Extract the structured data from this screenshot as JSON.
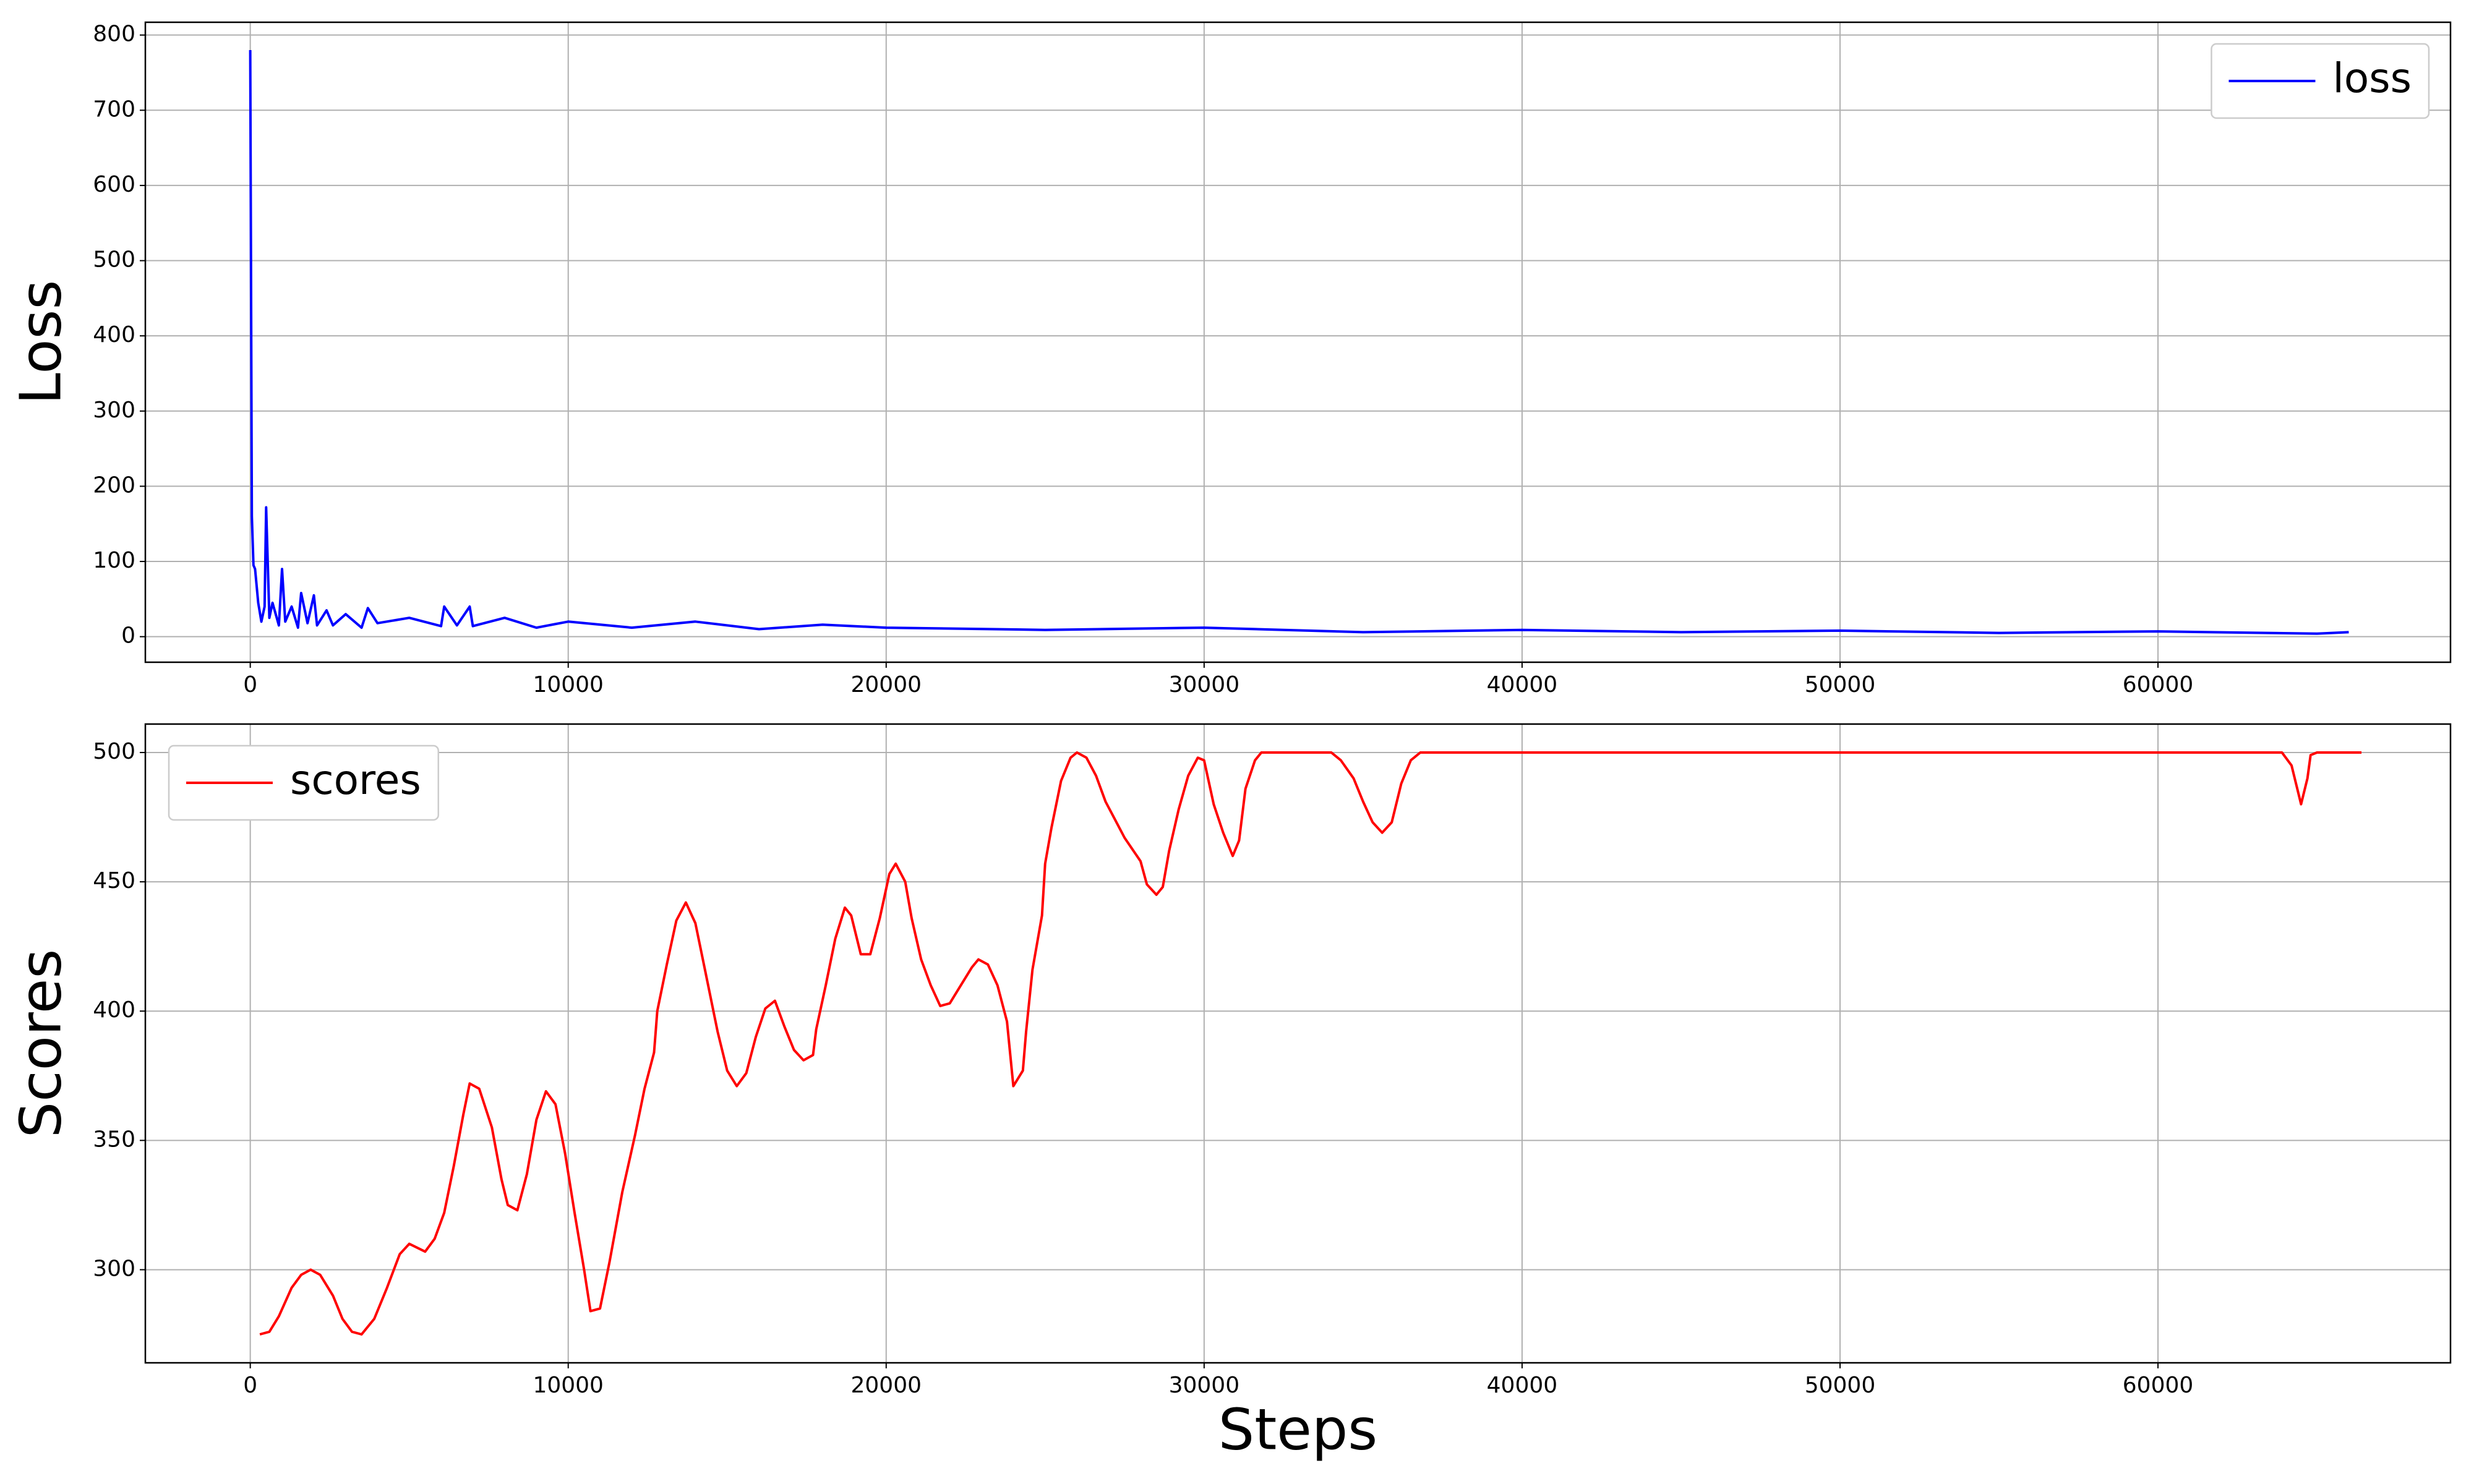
{
  "chart_data": [
    {
      "type": "line",
      "ylabel": "Loss",
      "x": [
        0,
        50,
        100,
        150,
        250,
        350,
        450,
        500,
        600,
        700,
        900,
        1000,
        1100,
        1300,
        1500,
        1600,
        1800,
        2000,
        2100,
        2400,
        2600,
        3000,
        3500,
        3700,
        4000,
        5000,
        6000,
        6100,
        6500,
        6900,
        7000,
        8000,
        9000,
        10000,
        12000,
        14000,
        16000,
        18000,
        20000,
        25000,
        30000,
        35000,
        40000,
        45000,
        50000,
        55000,
        60000,
        65000,
        66000
      ],
      "series": [
        {
          "name": "loss",
          "color": "#0000ff",
          "values": [
            780,
            160,
            95,
            90,
            45,
            20,
            40,
            172,
            25,
            45,
            15,
            90,
            20,
            40,
            12,
            58,
            18,
            55,
            15,
            35,
            15,
            30,
            12,
            38,
            18,
            25,
            14,
            40,
            15,
            40,
            14,
            25,
            12,
            20,
            12,
            20,
            10,
            16,
            12,
            9,
            12,
            6,
            9,
            6,
            8,
            5,
            7,
            4,
            6
          ]
        }
      ],
      "xlim": [
        -3300,
        69200
      ],
      "ylim": [
        -34,
        817
      ],
      "xticks": [
        0,
        10000,
        20000,
        30000,
        40000,
        50000,
        60000
      ],
      "yticks": [
        0,
        100,
        200,
        300,
        400,
        500,
        600,
        700,
        800
      ],
      "grid": true,
      "legend": "upper right"
    },
    {
      "type": "line",
      "ylabel": "Scores",
      "xlabel": "Steps",
      "x": [
        300,
        600,
        900,
        1300,
        1600,
        1900,
        2200,
        2600,
        2900,
        3200,
        3500,
        3900,
        4300,
        4700,
        5000,
        5500,
        5800,
        6100,
        6400,
        6700,
        6900,
        7200,
        7600,
        7900,
        8100,
        8400,
        8700,
        9000,
        9300,
        9600,
        9900,
        10200,
        10500,
        10700,
        11000,
        11300,
        11700,
        12100,
        12400,
        12700,
        12800,
        13100,
        13400,
        13700,
        14000,
        14300,
        14700,
        15000,
        15300,
        15600,
        15900,
        16200,
        16500,
        16800,
        17100,
        17400,
        17700,
        17800,
        18100,
        18400,
        18700,
        18900,
        19200,
        19500,
        19800,
        20100,
        20300,
        20600,
        20800,
        21100,
        21400,
        21700,
        22000,
        22300,
        22700,
        22900,
        23200,
        23500,
        23800,
        24000,
        24300,
        24400,
        24600,
        24900,
        25000,
        25200,
        25500,
        25800,
        26000,
        26300,
        26600,
        26900,
        27200,
        27500,
        28000,
        28200,
        28500,
        28700,
        28900,
        29200,
        29500,
        29800,
        30000,
        30300,
        30600,
        30900,
        31100,
        31300,
        31600,
        31800,
        34000,
        34300,
        34700,
        35000,
        35300,
        35600,
        35900,
        36200,
        36500,
        36800,
        63900,
        64200,
        64500,
        64700,
        64800,
        65000,
        66400
      ],
      "series": [
        {
          "name": "scores",
          "color": "#ff0000",
          "values": [
            275,
            276,
            282,
            293,
            298,
            300,
            298,
            290,
            281,
            276,
            275,
            281,
            293,
            306,
            310,
            307,
            312,
            322,
            340,
            360,
            372,
            370,
            355,
            335,
            325,
            323,
            337,
            358,
            369,
            364,
            345,
            322,
            300,
            284,
            285,
            303,
            330,
            352,
            370,
            384,
            400,
            418,
            435,
            442,
            434,
            416,
            392,
            377,
            371,
            376,
            390,
            401,
            404,
            394,
            385,
            381,
            383,
            393,
            410,
            428,
            440,
            437,
            422,
            422,
            436,
            453,
            457,
            450,
            436,
            420,
            410,
            402,
            403,
            409,
            417,
            420,
            418,
            410,
            396,
            371,
            377,
            392,
            416,
            437,
            457,
            471,
            489,
            498,
            500,
            498,
            491,
            481,
            474,
            467,
            458,
            449,
            445,
            448,
            462,
            478,
            491,
            498,
            497,
            480,
            469,
            460,
            466,
            486,
            497,
            500,
            500,
            497,
            490,
            481,
            473,
            469,
            473,
            488,
            497,
            500,
            500,
            495,
            480,
            490,
            499,
            500,
            500
          ]
        }
      ],
      "xlim": [
        -3300,
        69200
      ],
      "ylim": [
        264,
        511
      ],
      "xticks": [
        0,
        10000,
        20000,
        30000,
        40000,
        50000,
        60000
      ],
      "yticks": [
        300,
        350,
        400,
        450,
        500
      ],
      "grid": true,
      "legend": "upper left"
    }
  ]
}
